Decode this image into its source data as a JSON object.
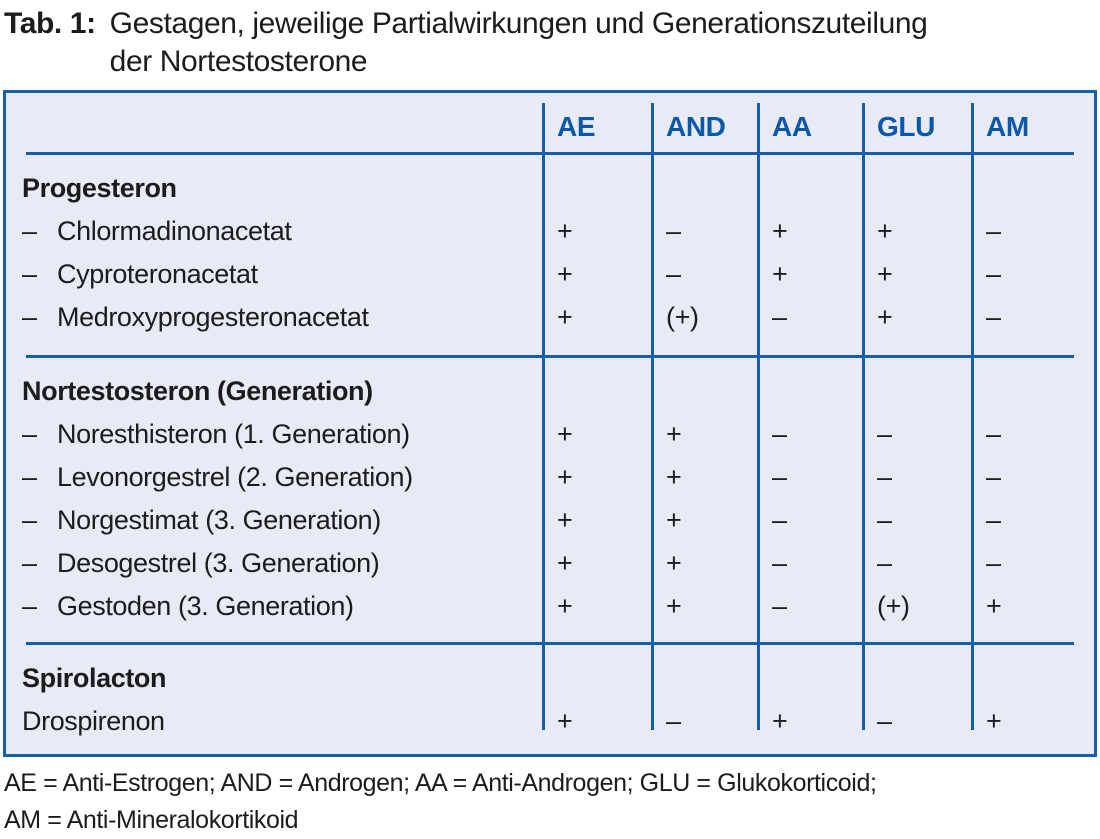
{
  "caption": {
    "label": "Tab. 1:",
    "line1": "Gestagen, jeweilige Partialwirkungen und Generationszuteilung",
    "line2": "der Nortestosterone"
  },
  "table": {
    "columns": [
      "AE",
      "AND",
      "AA",
      "GLU",
      "AM"
    ],
    "sections": [
      {
        "header": "Progesteron",
        "rows": [
          {
            "bullet": "–",
            "name": "Chlormadinonacetat",
            "values": [
              "+",
              "–",
              "+",
              "+",
              "–"
            ]
          },
          {
            "bullet": "–",
            "name": "Cyproteronacetat",
            "values": [
              "+",
              "–",
              "+",
              "+",
              "–"
            ]
          },
          {
            "bullet": "–",
            "name": "Medroxyprogesteronacetat",
            "values": [
              "+",
              "(+)",
              "–",
              "+",
              "–"
            ]
          }
        ]
      },
      {
        "header": "Nortestosteron (Generation)",
        "rows": [
          {
            "bullet": "–",
            "name": "Noresthisteron (1. Generation)",
            "values": [
              "+",
              "+",
              "–",
              "–",
              "–"
            ]
          },
          {
            "bullet": "–",
            "name": "Levonorgestrel (2. Generation)",
            "values": [
              "+",
              "+",
              "–",
              "–",
              "–"
            ]
          },
          {
            "bullet": "–",
            "name": "Norgestimat (3. Generation)",
            "values": [
              "+",
              "+",
              "–",
              "–",
              "–"
            ]
          },
          {
            "bullet": "–",
            "name": "Desogestrel (3. Generation)",
            "values": [
              "+",
              "+",
              "–",
              "–",
              "–"
            ]
          },
          {
            "bullet": "–",
            "name": "Gestoden (3. Generation)",
            "values": [
              "+",
              "+",
              "–",
              "(+)",
              "+"
            ]
          }
        ]
      },
      {
        "header": "Spirolacton",
        "rows": [
          {
            "bullet": "",
            "name": "Drospirenon",
            "values": [
              "+",
              "–",
              "+",
              "–",
              "+"
            ]
          }
        ]
      }
    ]
  },
  "footnote": {
    "line1": "AE = Anti-Estrogen; AND = Androgen; AA = Anti-Androgen; GLU = Glukokorticoid;",
    "line2": "AM = Anti-Mineralokortikoid"
  },
  "colors": {
    "accent_blue": "#1560a9",
    "column_header_text": "#0b58a9",
    "table_background": "#e8eaf5",
    "body_text": "#1c1c1e"
  }
}
